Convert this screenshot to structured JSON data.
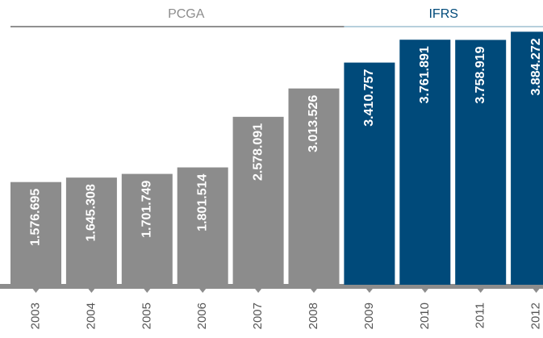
{
  "chart_data": {
    "type": "bar",
    "categories": [
      "2003",
      "2004",
      "2005",
      "2006",
      "2007",
      "2008",
      "2009",
      "2010",
      "2011",
      "2012"
    ],
    "series": [
      {
        "name": "PCGA",
        "color": "#8c8c8c",
        "values": [
          1576695,
          1645308,
          1701749,
          1801514,
          2578091,
          3013526,
          null,
          null,
          null,
          null
        ],
        "value_labels": [
          "1.576.695",
          "1.645.308",
          "1.701.749",
          "1.801.514",
          "2.578.091",
          "3.013.526",
          null,
          null,
          null,
          null
        ]
      },
      {
        "name": "IFRS",
        "color": "#004a7a",
        "values": [
          null,
          null,
          null,
          null,
          null,
          null,
          3410757,
          3761891,
          3758919,
          3884272
        ],
        "value_labels": [
          null,
          null,
          null,
          null,
          null,
          null,
          "3.410.757",
          "3.761.891",
          "3.758.919",
          "3.884.272"
        ]
      }
    ],
    "ylim": [
      0,
      4000000
    ]
  }
}
